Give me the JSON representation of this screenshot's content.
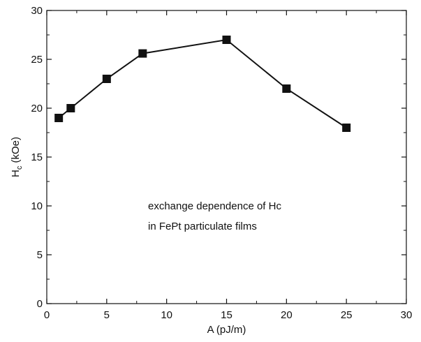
{
  "chart_data": {
    "type": "line",
    "title": "",
    "xlabel": "A (pJ/m)",
    "ylabel": {
      "base": "H",
      "subscript": "c",
      "unit": " (kOe)"
    },
    "xlim": [
      0,
      30
    ],
    "ylim": [
      0,
      30
    ],
    "x_ticks": [
      0,
      5,
      10,
      15,
      20,
      25,
      30
    ],
    "y_ticks": [
      0,
      5,
      10,
      15,
      20,
      25,
      30
    ],
    "grid": false,
    "series": [
      {
        "marker": "square",
        "color": "#111111",
        "x": [
          1,
          2,
          5,
          8,
          15,
          20,
          25
        ],
        "y": [
          19,
          20,
          23,
          25.6,
          27,
          22,
          18
        ]
      }
    ],
    "annotations": [
      "exchange dependence of Hc",
      "in FePt particulate films"
    ]
  }
}
